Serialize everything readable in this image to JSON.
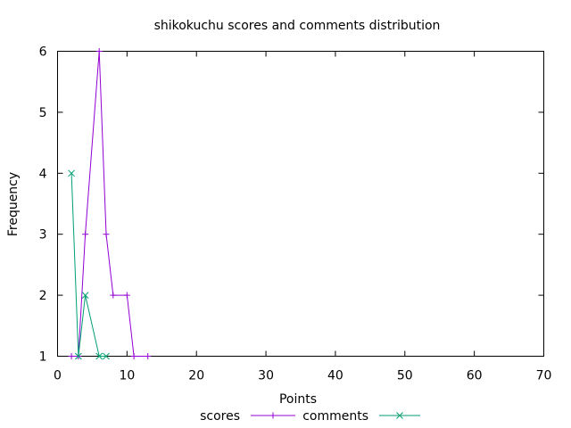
{
  "chart_data": {
    "type": "line",
    "title": "shikokuchu scores and comments distribution",
    "xlabel": "Points",
    "ylabel": "Frequency",
    "xlim": [
      0,
      70
    ],
    "ylim": [
      1,
      6
    ],
    "xticks": [
      "0",
      "10",
      "20",
      "30",
      "40",
      "50",
      "60",
      "70"
    ],
    "yticks": [
      "1",
      "2",
      "3",
      "4",
      "5",
      "6"
    ],
    "grid": false,
    "legend_position": "bottom",
    "series": [
      {
        "name": "scores",
        "color": "#9400d3",
        "marker": "plus",
        "x": [
          2,
          3,
          4,
          6,
          7,
          8,
          10,
          11,
          13
        ],
        "y": [
          1,
          1,
          3,
          6,
          3,
          2,
          2,
          1,
          1
        ]
      },
      {
        "name": "comments",
        "color": "#009e73",
        "marker": "cross",
        "x": [
          2,
          3,
          4,
          6,
          7
        ],
        "y": [
          4,
          1,
          2,
          1,
          1
        ]
      }
    ]
  }
}
